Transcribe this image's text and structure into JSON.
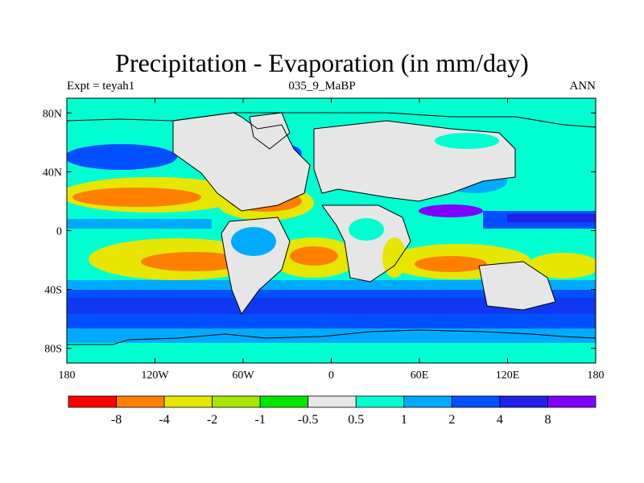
{
  "title": "Precipitation - Evaporation (in mm/day)",
  "left_label": "Expt = teyah1",
  "center_label": "035_9_MaBP",
  "right_label": "ANN",
  "map": {
    "lon_range": [
      -180,
      180
    ],
    "lat_range": [
      -90,
      90
    ],
    "lon_ticks": [
      {
        "value": -180,
        "label": "180"
      },
      {
        "value": -120,
        "label": "120W"
      },
      {
        "value": -60,
        "label": "60W"
      },
      {
        "value": 0,
        "label": "0"
      },
      {
        "value": 60,
        "label": "60E"
      },
      {
        "value": 120,
        "label": "120E"
      },
      {
        "value": 180,
        "label": "180"
      }
    ],
    "lat_ticks": [
      {
        "value": 80,
        "label": "80N"
      },
      {
        "value": 40,
        "label": "40N"
      },
      {
        "value": 0,
        "label": "0"
      },
      {
        "value": -40,
        "label": "40S"
      },
      {
        "value": -80,
        "label": "80S"
      }
    ]
  },
  "colorbar": {
    "colors": [
      "#ff0000",
      "#ff8000",
      "#e6e600",
      "#a6e600",
      "#00e600",
      "#e6e6e6",
      "#00ffd0",
      "#00aaff",
      "#0050ff",
      "#2020e6",
      "#8000ff"
    ],
    "labels": [
      "-8",
      "-4",
      "-2",
      "-1",
      "-0.5",
      "0.5",
      "1",
      "2",
      "4",
      "8"
    ]
  },
  "colors": {
    "ocean_background": "#00ffd0",
    "coastline": "#000000"
  }
}
